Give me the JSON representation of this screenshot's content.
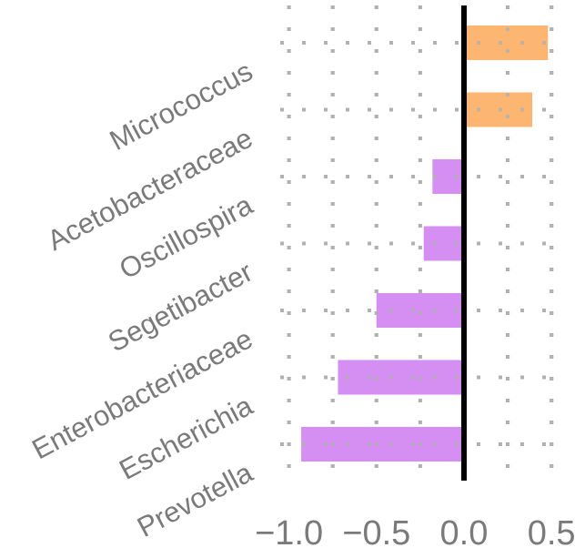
{
  "chart_data": {
    "type": "bar",
    "orientation": "horizontal",
    "categories": [
      "Micrococcus",
      "Acetobacteraceae",
      "Oscillospira",
      "Segetibacter",
      "Enterobacteriaceae",
      "Escherichia",
      "Prevotella"
    ],
    "values": [
      0.48,
      0.39,
      -0.18,
      -0.23,
      -0.5,
      -0.72,
      -0.93
    ],
    "bar_colors": [
      "#FDB672",
      "#FDB672",
      "#D58EF2",
      "#D58EF2",
      "#D58EF2",
      "#D58EF2",
      "#D58EF2"
    ],
    "xlim": [
      -1.05,
      0.52
    ],
    "x_ticks": [
      -1.0,
      -0.5,
      0.0,
      0.5
    ],
    "x_tick_labels": [
      "−1.0",
      "−0.5",
      "0.0",
      "0.5"
    ],
    "grid": "dotted",
    "zero_line": true,
    "title": "",
    "xlabel": "",
    "ylabel": ""
  }
}
